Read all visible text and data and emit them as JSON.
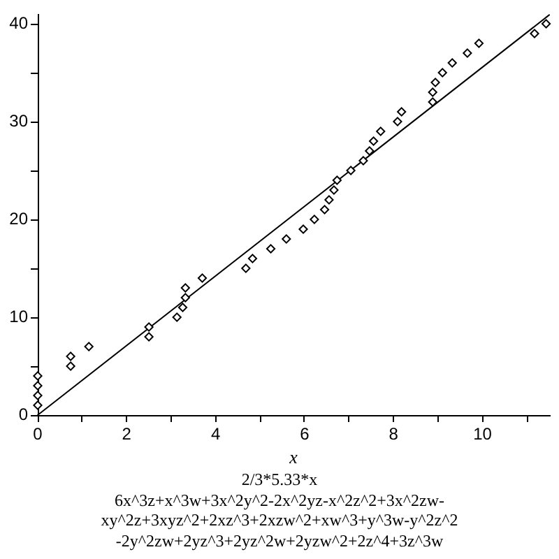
{
  "chart_data": {
    "type": "scatter",
    "xlabel": "x",
    "annotations": [
      "2/3*5.33*x",
      "6x^3z+x^3w+3x^2y^2-2x^2yz-x^2z^2+3x^2zw-",
      "xy^2z+3xyz^2+2xz^3+2xzw^2+xw^3+y^3w-y^2z^2",
      "-2y^2zw+2yz^3+2yz^2w+2yzw^2+2z^4+3z^3w"
    ],
    "xlim": [
      0,
      11.5
    ],
    "ylim": [
      0,
      41
    ],
    "xticks": [
      0,
      {
        "value": 1,
        "label": null
      },
      2,
      {
        "value": 3,
        "label": null
      },
      4,
      {
        "value": 5,
        "label": null
      },
      6,
      {
        "value": 7,
        "label": null
      },
      8,
      {
        "value": 9,
        "label": null
      },
      10,
      {
        "value": 11,
        "label": null
      }
    ],
    "yticks": [
      0,
      {
        "value": 5,
        "label": null
      },
      10,
      {
        "value": 15,
        "label": null
      },
      20,
      {
        "value": 25,
        "label": null
      },
      30,
      {
        "value": 35,
        "label": null
      },
      40
    ],
    "marker": "diamond",
    "series": [
      {
        "type": "scatter",
        "color": "#000000",
        "x": [
          0,
          0,
          0,
          0,
          0.74,
          0.74,
          1.15,
          2.5,
          2.5,
          3.13,
          3.26,
          3.32,
          3.32,
          3.7,
          4.68,
          4.83,
          5.24,
          5.59,
          5.97,
          6.22,
          6.45,
          6.55,
          6.66,
          6.73,
          7.04,
          7.32,
          7.46,
          7.55,
          7.71,
          8.09,
          8.18,
          8.88,
          8.88,
          8.94,
          9.1,
          9.32,
          9.66,
          9.92,
          11.17,
          11.43
        ],
        "values": [
          1,
          2,
          3,
          4,
          5,
          6,
          7,
          8,
          9,
          10,
          11,
          12,
          13,
          14,
          15,
          16,
          17,
          18,
          19,
          20,
          21,
          22,
          23,
          24,
          25,
          26,
          27,
          28,
          29,
          30,
          31,
          32,
          33,
          34,
          35,
          36,
          37,
          38,
          39,
          40
        ]
      },
      {
        "type": "line",
        "color": "#000000",
        "marker": "none",
        "line_style": "solid",
        "x": [
          0,
          11.5
        ],
        "values": [
          0,
          40.9
        ]
      }
    ]
  }
}
